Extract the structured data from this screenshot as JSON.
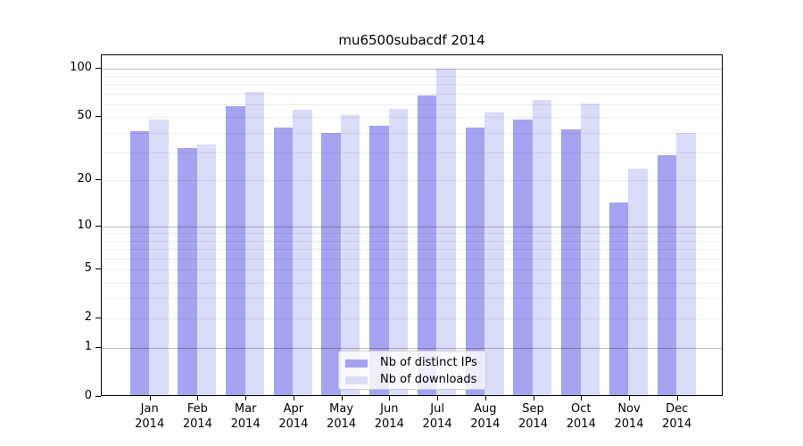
{
  "chart_data": {
    "type": "bar",
    "title": "mu6500subacdf 2014",
    "categories": [
      "Jan",
      "Feb",
      "Mar",
      "Apr",
      "May",
      "Jun",
      "Jul",
      "Aug",
      "Sep",
      "Oct",
      "Nov",
      "Dec"
    ],
    "year": "2014",
    "series": [
      {
        "name": "Nb of distinct IPs",
        "color": "#a3a3f0",
        "values": [
          40,
          31,
          57,
          42,
          39,
          43,
          66,
          42,
          47,
          41,
          14,
          28
        ]
      },
      {
        "name": "Nb of downloads",
        "color": "#dadaf9",
        "values": [
          47,
          33,
          70,
          54,
          50,
          55,
          97,
          52,
          62,
          59,
          23,
          39
        ]
      }
    ],
    "xlabel": "",
    "ylabel": "",
    "y_ticks": [
      0,
      1,
      2,
      5,
      10,
      20,
      50,
      100
    ],
    "scale": "log1p",
    "ylim": [
      0,
      120
    ],
    "grid": true,
    "minor_gridlines": [
      2,
      3,
      4,
      5,
      6,
      7,
      8,
      9,
      20,
      30,
      40,
      50,
      60,
      70,
      80,
      90
    ],
    "major_gridlines": [
      1,
      10,
      100
    ],
    "legend_position": "lower center",
    "colors": {
      "axis": "#000000",
      "major_grid": "#bababa",
      "minor_grid": "#ededed",
      "legend_border": "#cccccc"
    }
  }
}
